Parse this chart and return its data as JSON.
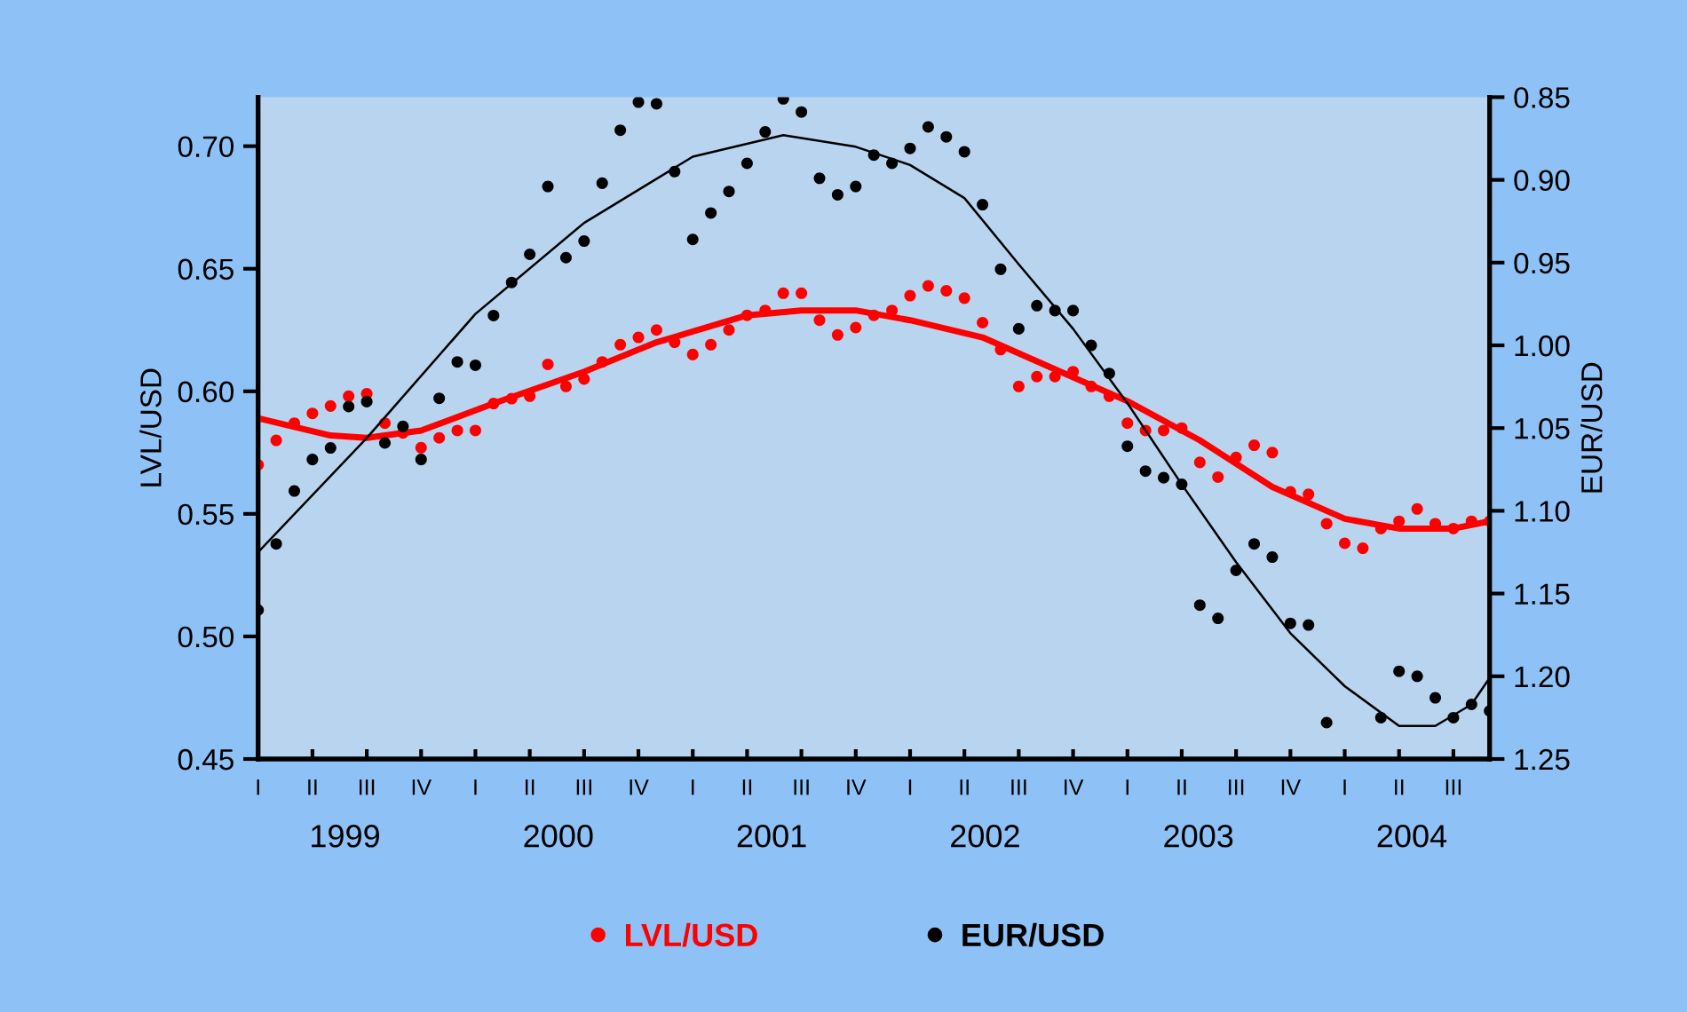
{
  "chart_data": {
    "type": "scatter",
    "ylabel": "LVL/USD",
    "y2label": "EUR/USD",
    "categories": [
      "I",
      null,
      null,
      "II",
      null,
      null,
      "III",
      null,
      null,
      "IV",
      null,
      null,
      "I",
      null,
      null,
      "II",
      null,
      null,
      "III",
      null,
      null,
      "IV",
      null,
      null,
      "I",
      null,
      null,
      "II",
      null,
      null,
      "III",
      null,
      null,
      "IV",
      null,
      null,
      "I",
      null,
      null,
      "II",
      null,
      null,
      "III",
      null,
      null,
      "IV",
      null,
      null,
      "I",
      null,
      null,
      "II",
      null,
      null,
      "III",
      null,
      null,
      "IV",
      null,
      null,
      "I",
      null,
      null,
      "II",
      null,
      null,
      "III",
      null,
      null
    ],
    "series": [
      {
        "name": "LVL/USD",
        "color": "#ff0000",
        "values": [
          0.57,
          0.58,
          0.587,
          0.591,
          0.594,
          0.598,
          0.599,
          0.587,
          0.583,
          0.577,
          0.581,
          0.584,
          0.584,
          0.595,
          0.597,
          0.598,
          0.611,
          0.602,
          0.605,
          0.612,
          0.619,
          0.622,
          0.625,
          0.62,
          0.615,
          0.619,
          0.625,
          0.631,
          0.633,
          0.64,
          0.64,
          0.629,
          0.623,
          0.626,
          0.631,
          0.633,
          0.639,
          0.643,
          0.641,
          0.638,
          0.628,
          0.617,
          0.602,
          0.606,
          0.606,
          0.608,
          0.602,
          0.598,
          0.587,
          0.584,
          0.584,
          0.585,
          0.571,
          0.565,
          0.573,
          0.578,
          0.575,
          0.559,
          0.558,
          0.546,
          0.538,
          0.536,
          0.544,
          0.547,
          0.552,
          0.546,
          0.544,
          0.547,
          0.547
        ]
      },
      {
        "name": "EUR/USD",
        "axis": "y2",
        "color": "#000000",
        "values": [
          1.16,
          1.12,
          1.088,
          1.069,
          1.062,
          1.037,
          1.034,
          1.059,
          1.049,
          1.069,
          1.032,
          1.01,
          1.012,
          0.982,
          0.962,
          0.945,
          0.904,
          0.947,
          0.937,
          0.902,
          0.87,
          0.853,
          0.854,
          0.895,
          0.936,
          0.92,
          0.907,
          0.89,
          0.871,
          0.851,
          0.859,
          0.899,
          0.909,
          0.904,
          0.885,
          0.89,
          0.881,
          0.868,
          0.874,
          0.883,
          0.915,
          0.954,
          0.99,
          0.976,
          0.979,
          0.979,
          1.0,
          1.017,
          1.061,
          1.076,
          1.08,
          1.084,
          1.157,
          1.165,
          1.136,
          1.12,
          1.128,
          1.168,
          1.169,
          1.228,
          null,
          null,
          1.225,
          1.197,
          1.2,
          1.213,
          1.225,
          1.217,
          1.221
        ]
      },
      {
        "type": "line",
        "marker": "none",
        "color": "#ff0000",
        "values": [
          0.589,
          null,
          null,
          null,
          0.582,
          null,
          0.581,
          null,
          null,
          0.584,
          null,
          null,
          null,
          0.595,
          null,
          null,
          null,
          null,
          0.608,
          null,
          null,
          null,
          0.62,
          null,
          null,
          null,
          null,
          0.631,
          null,
          null,
          0.633,
          null,
          null,
          0.633,
          null,
          null,
          0.629,
          null,
          null,
          null,
          0.622,
          null,
          null,
          null,
          0.609,
          null,
          null,
          null,
          0.596,
          null,
          null,
          null,
          0.58,
          null,
          null,
          null,
          0.561,
          null,
          null,
          null,
          0.548,
          null,
          null,
          0.544,
          null,
          null,
          0.544,
          null,
          0.547
        ]
      },
      {
        "type": "line",
        "marker": "none",
        "axis": "y2",
        "color": "#000000",
        "values": [
          1.125,
          null,
          null,
          null,
          null,
          null,
          1.056,
          null,
          null,
          null,
          null,
          null,
          0.981,
          null,
          null,
          null,
          null,
          null,
          0.926,
          null,
          null,
          null,
          null,
          null,
          0.886,
          null,
          null,
          null,
          null,
          0.873,
          null,
          null,
          null,
          0.88,
          null,
          null,
          0.891,
          null,
          null,
          0.911,
          null,
          null,
          0.951,
          null,
          null,
          0.99,
          null,
          null,
          1.035,
          null,
          null,
          1.084,
          null,
          null,
          1.131,
          null,
          null,
          1.174,
          null,
          null,
          1.206,
          null,
          null,
          1.23,
          null,
          1.23,
          null,
          1.217,
          1.201
        ]
      }
    ],
    "marker": "circle",
    "x2lim": [
      1998.593,
      2004.365
    ],
    "x2ticks": [
      1999,
      2000,
      2001,
      2002,
      2003,
      2004
    ],
    "ylim": [
      0.45,
      0.72
    ],
    "yticks": [
      {
        "value": 0.45,
        "label": "0.45"
      },
      {
        "value": 0.5,
        "label": "0.50"
      },
      {
        "value": 0.55,
        "label": "0.55"
      },
      {
        "value": 0.6,
        "label": "0.60"
      },
      {
        "value": 0.65,
        "label": "0.65"
      },
      {
        "value": 0.7,
        "label": "0.70"
      }
    ],
    "y2lim": [
      1.25,
      0.85
    ],
    "y2ticks": [
      {
        "value": 0.85,
        "label": "0.85"
      },
      {
        "value": 0.9,
        "label": "0.90"
      },
      {
        "value": 0.95,
        "label": "0.95"
      },
      {
        "value": 1.0,
        "label": "1.00"
      },
      {
        "value": 1.05,
        "label": "1.05"
      },
      {
        "value": 1.1,
        "label": "1.10"
      },
      {
        "value": 1.15,
        "label": "1.15"
      },
      {
        "value": 1.2,
        "label": "1.20"
      },
      {
        "value": 1.25,
        "label": "1.25"
      }
    ],
    "grid": false,
    "legend": "bottom"
  }
}
